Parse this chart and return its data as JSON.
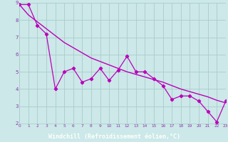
{
  "xlabel": "Windchill (Refroidissement éolien,°C)",
  "x_data": [
    0,
    1,
    2,
    3,
    4,
    5,
    6,
    7,
    8,
    9,
    10,
    11,
    12,
    13,
    14,
    15,
    16,
    17,
    18,
    19,
    20,
    21,
    22,
    23
  ],
  "y_actual": [
    8.9,
    8.9,
    7.7,
    7.2,
    4.0,
    5.0,
    5.2,
    4.4,
    4.6,
    5.2,
    4.5,
    5.1,
    5.9,
    5.0,
    5.0,
    4.6,
    4.2,
    3.4,
    3.6,
    3.6,
    3.3,
    2.7,
    2.1,
    3.3
  ],
  "y_trend": [
    8.9,
    8.3,
    7.9,
    7.5,
    7.1,
    6.7,
    6.4,
    6.1,
    5.8,
    5.6,
    5.4,
    5.2,
    5.0,
    4.85,
    4.7,
    4.55,
    4.4,
    4.2,
    4.0,
    3.85,
    3.7,
    3.55,
    3.35,
    3.2
  ],
  "line_color": "#bb00bb",
  "bg_color": "#cce8e8",
  "grid_color": "#aacccc",
  "xlabel_bg": "#7755aa",
  "xlabel_color": "#ffffff",
  "tick_color": "#8833aa",
  "ylim": [
    2,
    9
  ],
  "xlim": [
    0,
    23
  ],
  "yticks": [
    2,
    3,
    4,
    5,
    6,
    7,
    8,
    9
  ],
  "xticks": [
    0,
    1,
    2,
    3,
    4,
    5,
    6,
    7,
    8,
    9,
    10,
    11,
    12,
    13,
    14,
    15,
    16,
    17,
    18,
    19,
    20,
    21,
    22,
    23
  ]
}
